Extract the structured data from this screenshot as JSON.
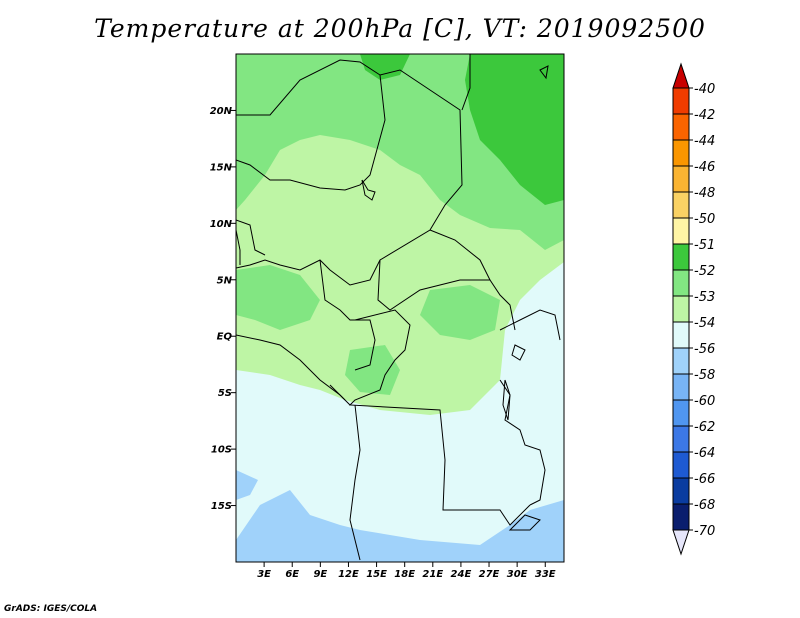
{
  "title": "Temperature at 200hPa [C], VT: 2019092500",
  "credit": "GrADS: IGES/COLA",
  "map": {
    "lon_range": [
      0,
      35
    ],
    "lat_range": [
      -20,
      25
    ],
    "lon_ticks": [
      {
        "value": 3,
        "label": "3E"
      },
      {
        "value": 6,
        "label": "6E"
      },
      {
        "value": 9,
        "label": "9E"
      },
      {
        "value": 12,
        "label": "12E"
      },
      {
        "value": 15,
        "label": "15E"
      },
      {
        "value": 18,
        "label": "18E"
      },
      {
        "value": 21,
        "label": "21E"
      },
      {
        "value": 24,
        "label": "24E"
      },
      {
        "value": 27,
        "label": "27E"
      },
      {
        "value": 30,
        "label": "30E"
      },
      {
        "value": 33,
        "label": "33E"
      }
    ],
    "lat_ticks": [
      {
        "value": 20,
        "label": "20N"
      },
      {
        "value": 15,
        "label": "15N"
      },
      {
        "value": 10,
        "label": "10N"
      },
      {
        "value": 5,
        "label": "5N"
      },
      {
        "value": 0,
        "label": "EQ"
      },
      {
        "value": -5,
        "label": "5S"
      },
      {
        "value": -10,
        "label": "10S"
      },
      {
        "value": -15,
        "label": "15S"
      }
    ],
    "fill_colors": {
      "-52": "#3cc83c",
      "-53": "#82e682",
      "-54": "#bef5a5",
      "-56": "#e1fafa",
      "-58": "#a0d2fa"
    }
  },
  "colorbar": {
    "levels": [
      {
        "label": "-40",
        "color": "#e11400"
      },
      {
        "label": "-42",
        "color": "#f03c00"
      },
      {
        "label": "-44",
        "color": "#fa6400"
      },
      {
        "label": "-46",
        "color": "#fa9600"
      },
      {
        "label": "-48",
        "color": "#fab432"
      },
      {
        "label": "-50",
        "color": "#fad264"
      },
      {
        "label": "-51",
        "color": "#fff5a5"
      },
      {
        "label": "-52",
        "color": "#3cc83c"
      },
      {
        "label": "-53",
        "color": "#82e682"
      },
      {
        "label": "-54",
        "color": "#bef5a5"
      },
      {
        "label": "-56",
        "color": "#e1fafa"
      },
      {
        "label": "-58",
        "color": "#a0d2fa"
      },
      {
        "label": "-60",
        "color": "#78b4f5"
      },
      {
        "label": "-62",
        "color": "#5096f0"
      },
      {
        "label": "-64",
        "color": "#3c78e6"
      },
      {
        "label": "-66",
        "color": "#1e5ad2"
      },
      {
        "label": "-68",
        "color": "#0a3ca0"
      },
      {
        "label": "-70",
        "color": "#0a1e6e"
      }
    ],
    "top_arrow_color": "#c80000",
    "bottom_arrow_color": "#e6e6fa"
  }
}
